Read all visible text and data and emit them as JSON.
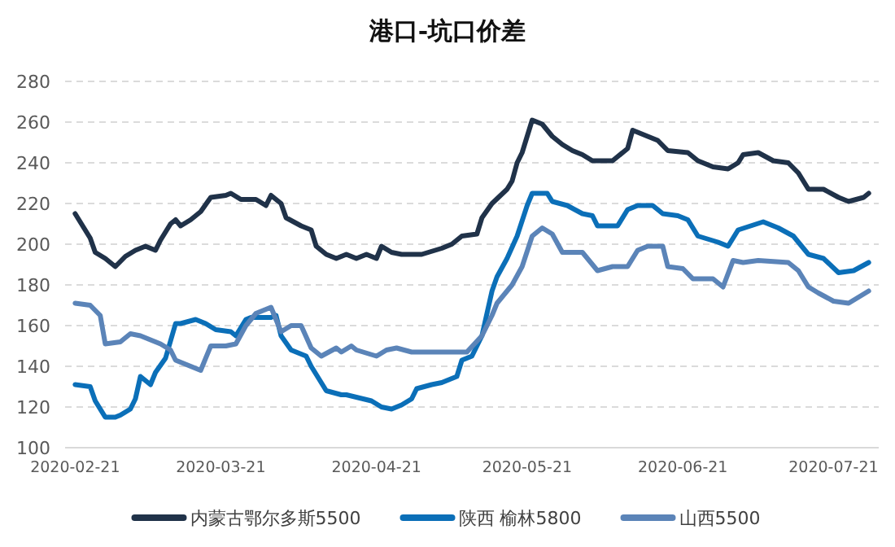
{
  "chart_data": {
    "type": "line",
    "title": "港口-坑口价差",
    "ylim": [
      100,
      280
    ],
    "yticks": [
      100,
      120,
      140,
      160,
      180,
      200,
      220,
      240,
      260,
      280
    ],
    "xlim": [
      "2020-02-19",
      "2020-07-30"
    ],
    "xticks": [
      "2020-02-21",
      "2020-03-21",
      "2020-04-21",
      "2020-05-21",
      "2020-06-21",
      "2020-07-21"
    ],
    "grid": "y",
    "legend": "bottom",
    "marker": "none",
    "line_style": "solid",
    "series": [
      {
        "name": "内蒙古鄂尔多斯5500",
        "color": "#203249",
        "x": [
          "2020-02-21",
          "2020-02-24",
          "2020-02-25",
          "2020-02-27",
          "2020-02-29",
          "2020-03-02",
          "2020-03-04",
          "2020-03-06",
          "2020-03-08",
          "2020-03-09",
          "2020-03-11",
          "2020-03-12",
          "2020-03-13",
          "2020-03-15",
          "2020-03-17",
          "2020-03-19",
          "2020-03-22",
          "2020-03-23",
          "2020-03-25",
          "2020-03-28",
          "2020-03-30",
          "2020-03-31",
          "2020-04-02",
          "2020-04-03",
          "2020-04-06",
          "2020-04-08",
          "2020-04-09",
          "2020-04-11",
          "2020-04-13",
          "2020-04-15",
          "2020-04-17",
          "2020-04-19",
          "2020-04-21",
          "2020-04-22",
          "2020-04-24",
          "2020-04-26",
          "2020-04-30",
          "2020-05-04",
          "2020-05-06",
          "2020-05-08",
          "2020-05-11",
          "2020-05-12",
          "2020-05-14",
          "2020-05-17",
          "2020-05-18",
          "2020-05-19",
          "2020-05-20",
          "2020-05-22",
          "2020-05-24",
          "2020-05-26",
          "2020-05-28",
          "2020-05-30",
          "2020-06-01",
          "2020-06-03",
          "2020-06-07",
          "2020-06-10",
          "2020-06-11",
          "2020-06-14",
          "2020-06-16",
          "2020-06-18",
          "2020-06-22",
          "2020-06-24",
          "2020-06-27",
          "2020-06-30",
          "2020-07-02",
          "2020-07-03",
          "2020-07-06",
          "2020-07-09",
          "2020-07-12",
          "2020-07-14",
          "2020-07-16",
          "2020-07-19",
          "2020-07-22",
          "2020-07-24",
          "2020-07-27",
          "2020-07-28"
        ],
        "values": [
          215,
          203,
          196,
          193,
          189,
          194,
          197,
          199,
          197,
          202,
          210,
          212,
          209,
          212,
          216,
          223,
          224,
          225,
          222,
          222,
          219,
          224,
          220,
          213,
          209,
          207,
          199,
          195,
          193,
          195,
          193,
          195,
          193,
          199,
          196,
          195,
          195,
          198,
          200,
          204,
          205,
          213,
          220,
          227,
          231,
          240,
          245,
          261,
          259,
          253,
          249,
          246,
          244,
          241,
          241,
          247,
          256,
          253,
          251,
          246,
          245,
          241,
          238,
          237,
          240,
          244,
          245,
          241,
          240,
          235,
          227,
          227,
          223,
          221,
          223,
          225
        ]
      },
      {
        "name": "陕西 榆林5800",
        "color": "#0b6fb8",
        "x": [
          "2020-02-21",
          "2020-02-24",
          "2020-02-25",
          "2020-02-27",
          "2020-02-29",
          "2020-03-01",
          "2020-03-03",
          "2020-03-04",
          "2020-03-05",
          "2020-03-07",
          "2020-03-08",
          "2020-03-10",
          "2020-03-12",
          "2020-03-13",
          "2020-03-16",
          "2020-03-18",
          "2020-03-20",
          "2020-03-23",
          "2020-03-24",
          "2020-03-26",
          "2020-03-27",
          "2020-03-31",
          "2020-04-01",
          "2020-04-02",
          "2020-04-04",
          "2020-04-07",
          "2020-04-08",
          "2020-04-11",
          "2020-04-14",
          "2020-04-15",
          "2020-04-20",
          "2020-04-22",
          "2020-04-24",
          "2020-04-26",
          "2020-04-28",
          "2020-04-29",
          "2020-05-02",
          "2020-05-04",
          "2020-05-07",
          "2020-05-08",
          "2020-05-10",
          "2020-05-12",
          "2020-05-14",
          "2020-05-15",
          "2020-05-17",
          "2020-05-19",
          "2020-05-21",
          "2020-05-22",
          "2020-05-25",
          "2020-05-26",
          "2020-05-29",
          "2020-06-01",
          "2020-06-03",
          "2020-06-04",
          "2020-06-08",
          "2020-06-10",
          "2020-06-12",
          "2020-06-15",
          "2020-06-17",
          "2020-06-20",
          "2020-06-22",
          "2020-06-24",
          "2020-06-28",
          "2020-06-30",
          "2020-07-02",
          "2020-07-07",
          "2020-07-10",
          "2020-07-13",
          "2020-07-16",
          "2020-07-19",
          "2020-07-22",
          "2020-07-25",
          "2020-07-28"
        ],
        "values": [
          131,
          130,
          123,
          115,
          115,
          116,
          119,
          124,
          135,
          131,
          137,
          144,
          161,
          161,
          163,
          161,
          158,
          157,
          155,
          163,
          164,
          164,
          165,
          155,
          148,
          145,
          140,
          128,
          126,
          126,
          123,
          120,
          119,
          121,
          124,
          129,
          131,
          132,
          135,
          143,
          145,
          155,
          177,
          184,
          193,
          204,
          219,
          225,
          225,
          221,
          219,
          215,
          214,
          209,
          209,
          217,
          219,
          219,
          215,
          214,
          212,
          204,
          201,
          199,
          207,
          211,
          208,
          204,
          195,
          193,
          186,
          187,
          191
        ]
      },
      {
        "name": "山西5500",
        "color": "#5b84b8",
        "x": [
          "2020-02-21",
          "2020-02-24",
          "2020-02-26",
          "2020-02-27",
          "2020-03-01",
          "2020-03-03",
          "2020-03-05",
          "2020-03-07",
          "2020-03-09",
          "2020-03-11",
          "2020-03-12",
          "2020-03-15",
          "2020-03-17",
          "2020-03-19",
          "2020-03-22",
          "2020-03-24",
          "2020-03-26",
          "2020-03-28",
          "2020-03-31",
          "2020-04-02",
          "2020-04-04",
          "2020-04-06",
          "2020-04-08",
          "2020-04-10",
          "2020-04-13",
          "2020-04-14",
          "2020-04-16",
          "2020-04-17",
          "2020-04-21",
          "2020-04-23",
          "2020-04-25",
          "2020-04-28",
          "2020-05-04",
          "2020-05-09",
          "2020-05-12",
          "2020-05-14",
          "2020-05-15",
          "2020-05-18",
          "2020-05-20",
          "2020-05-22",
          "2020-05-24",
          "2020-05-26",
          "2020-05-28",
          "2020-06-01",
          "2020-06-04",
          "2020-06-07",
          "2020-06-10",
          "2020-06-12",
          "2020-06-14",
          "2020-06-17",
          "2020-06-18",
          "2020-06-21",
          "2020-06-23",
          "2020-06-27",
          "2020-06-29",
          "2020-07-01",
          "2020-07-03",
          "2020-07-06",
          "2020-07-12",
          "2020-07-14",
          "2020-07-16",
          "2020-07-18",
          "2020-07-21",
          "2020-07-24",
          "2020-07-28"
        ],
        "values": [
          171,
          170,
          165,
          151,
          152,
          156,
          155,
          153,
          151,
          148,
          143,
          140,
          138,
          150,
          150,
          151,
          160,
          166,
          169,
          157,
          160,
          160,
          149,
          145,
          149,
          147,
          150,
          148,
          145,
          148,
          149,
          147,
          147,
          147,
          155,
          165,
          171,
          180,
          189,
          204,
          208,
          205,
          196,
          196,
          187,
          189,
          189,
          197,
          199,
          199,
          189,
          188,
          183,
          183,
          179,
          192,
          191,
          192,
          191,
          187,
          179,
          176,
          172,
          171,
          177
        ]
      }
    ]
  }
}
